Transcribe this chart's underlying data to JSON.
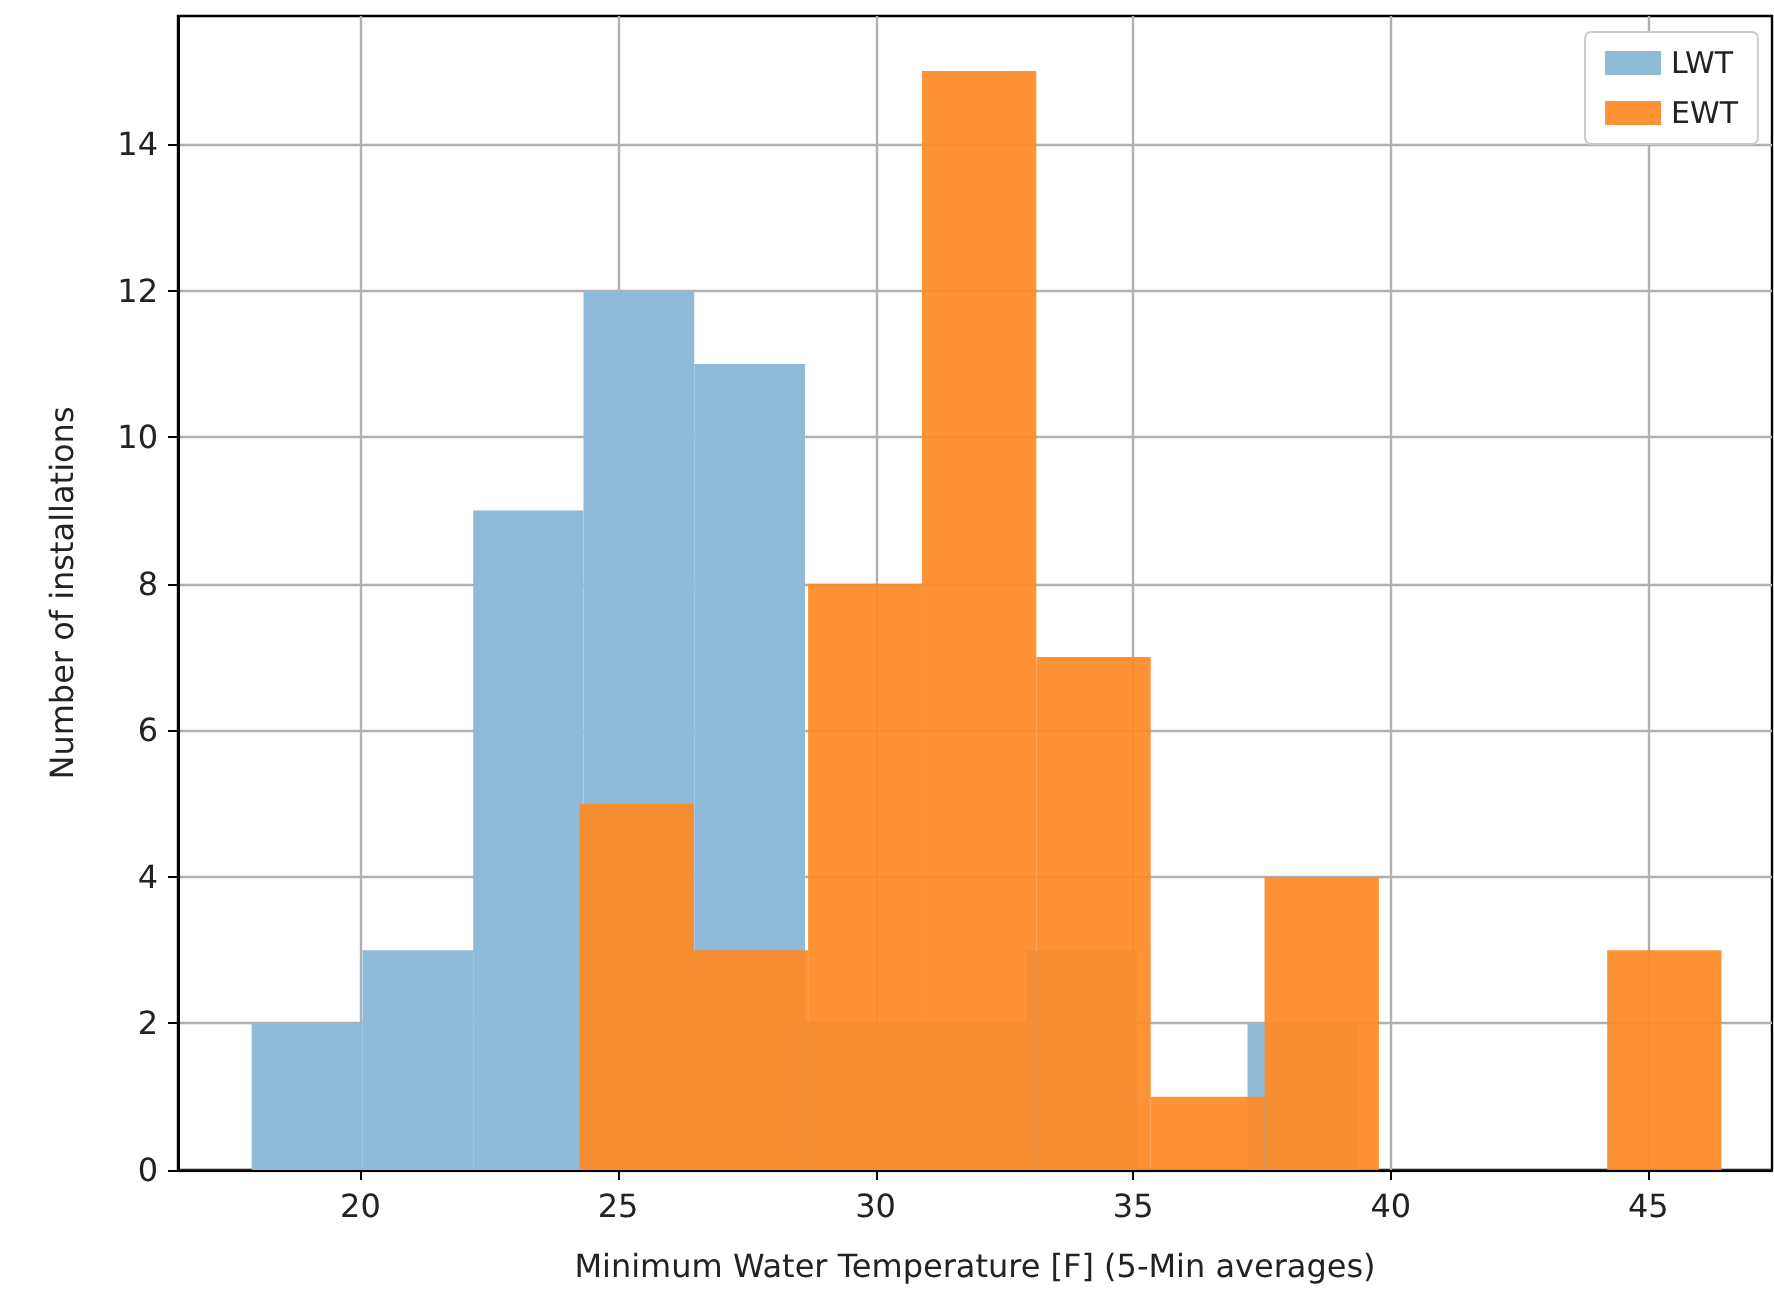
{
  "chart_data": {
    "type": "histogram",
    "xlabel": "Minimum Water Temperature [F] (5-Min averages)",
    "ylabel": "Number of installations",
    "bins": [
      17.89,
      20.04,
      22.19,
      24.33,
      26.48,
      28.63,
      30.78,
      32.93,
      35.07,
      37.22,
      39.37
    ],
    "series": [
      {
        "name": "LWT",
        "color": "#8fbbd9",
        "values": [
          2,
          3,
          9,
          12,
          11,
          2,
          2,
          3,
          0,
          2
        ]
      },
      {
        "name": "EWT",
        "color": "#fe8a25",
        "bins": [
          24.26,
          26.47,
          28.69,
          30.9,
          33.12,
          35.34,
          37.55,
          39.77,
          44.2,
          46.42
        ],
        "values": [
          5,
          3,
          8,
          15,
          7,
          1,
          4,
          0,
          3
        ]
      }
    ],
    "xlim": [
      16.46,
      47.4
    ],
    "ylim": [
      0,
      15.75
    ],
    "xticks": [
      20,
      25,
      30,
      35,
      40,
      45
    ],
    "yticks": [
      0,
      2,
      4,
      6,
      8,
      10,
      12,
      14
    ],
    "grid": true,
    "legend": "top right"
  }
}
